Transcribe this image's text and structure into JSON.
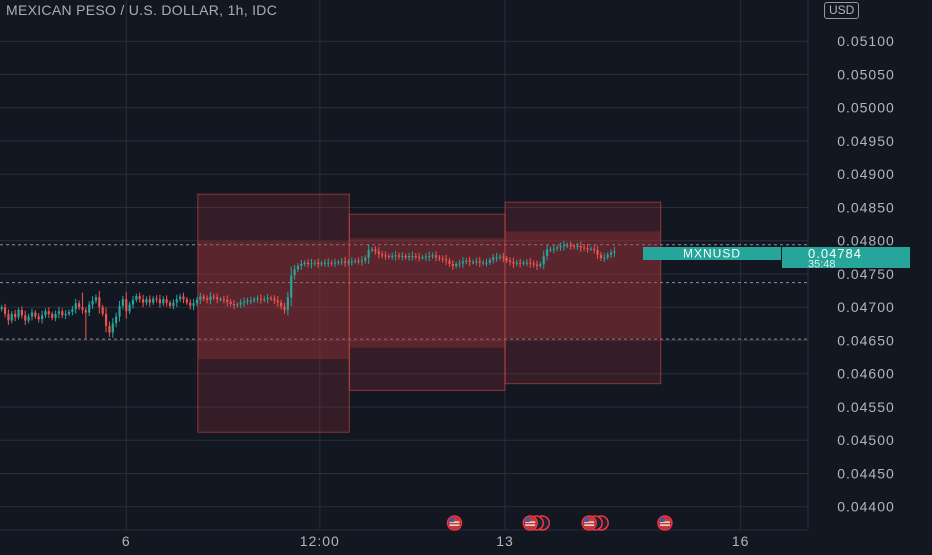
{
  "header": {
    "title": "MEXICAN PESO / U.S. DOLLAR, 1h, IDC",
    "currency": "USD"
  },
  "colors": {
    "background": "#131722",
    "up": "#26a69a",
    "down": "#ef5350",
    "grid": "#2a2e39",
    "zone_fill": "#b2383b",
    "zone_stroke": "#e84a4d",
    "axis_text": "#b2b5be"
  },
  "price_tag": {
    "symbol": "MXNUSD",
    "price": "0.04784",
    "countdown": "35:48"
  },
  "event_icons": [
    {
      "label": "US",
      "count": 1,
      "time": 5.4
    },
    {
      "label": "US",
      "count": 3,
      "time": 6.3
    },
    {
      "label": "US",
      "count": 3,
      "time": 7.0
    },
    {
      "label": "US",
      "count": 1,
      "time": 7.9
    }
  ],
  "chart_data": {
    "type": "candlestick",
    "title": "MEXICAN PESO / U.S. DOLLAR, 1h, IDC",
    "ylim": [
      0.04365,
      0.05162
    ],
    "xlim": [
      0,
      9.6
    ],
    "y_ticks": [
      "0.04400",
      "0.04450",
      "0.04500",
      "0.04550",
      "0.04600",
      "0.04650",
      "0.04700",
      "0.04750",
      "0.04800",
      "0.04850",
      "0.04900",
      "0.04950",
      "0.05000",
      "0.05050",
      "0.05100"
    ],
    "x_ticks": [
      {
        "label": "6",
        "t": 1.5
      },
      {
        "label": "12:00",
        "t": 3.8
      },
      {
        "label": "13",
        "t": 6.0
      },
      {
        "label": "16",
        "t": 8.8
      }
    ],
    "last_price": 0.04784,
    "horizontal_lines": [
      0.04794,
      0.04737,
      0.04652
    ],
    "zones": [
      {
        "t0": 2.35,
        "t1": 4.15,
        "top": 0.0487,
        "bottom": 0.04512,
        "mid_top": 0.04799,
        "mid_bottom": 0.04622
      },
      {
        "t0": 4.15,
        "t1": 6.0,
        "top": 0.0484,
        "bottom": 0.04575,
        "mid_top": 0.04804,
        "mid_bottom": 0.04639
      },
      {
        "t0": 6.0,
        "t1": 7.85,
        "top": 0.04858,
        "bottom": 0.04585,
        "mid_top": 0.04814,
        "mid_bottom": 0.04652
      }
    ],
    "candle_interval": 0.04,
    "closes": [
      0.047,
      0.0469,
      0.0468,
      0.0469,
      0.04685,
      0.04696,
      0.04688,
      0.0468,
      0.04686,
      0.04692,
      0.04686,
      0.04682,
      0.04688,
      0.04694,
      0.0469,
      0.04684,
      0.0469,
      0.04694,
      0.04688,
      0.0469,
      0.04693,
      0.04697,
      0.04706,
      0.047,
      0.04696,
      0.04692,
      0.04704,
      0.0471,
      0.04715,
      0.047,
      0.0469,
      0.04672,
      0.04662,
      0.04676,
      0.04686,
      0.04702,
      0.04712,
      0.04694,
      0.04704,
      0.04711,
      0.04717,
      0.04712,
      0.04707,
      0.04712,
      0.04707,
      0.04713,
      0.04712,
      0.04706,
      0.04712,
      0.04707,
      0.04702,
      0.04707,
      0.04712,
      0.04716,
      0.04712,
      0.04707,
      0.04702,
      0.04706,
      0.04711,
      0.04716,
      0.04713,
      0.04711,
      0.04716,
      0.04715,
      0.04712,
      0.04712,
      0.04711,
      0.04708,
      0.04705,
      0.04703,
      0.04704,
      0.04707,
      0.04708,
      0.0471,
      0.0471,
      0.04712,
      0.04713,
      0.04712,
      0.04712,
      0.04714,
      0.04713,
      0.0471,
      0.04707,
      0.04701,
      0.04696,
      0.04715,
      0.04748,
      0.04757,
      0.04762,
      0.04765,
      0.04767,
      0.04765,
      0.04766,
      0.04767,
      0.04765,
      0.04766,
      0.04767,
      0.04767,
      0.04766,
      0.04767,
      0.04768,
      0.04769,
      0.04767,
      0.04768,
      0.04769,
      0.0477,
      0.04769,
      0.0477,
      0.04774,
      0.04786,
      0.04787,
      0.04784,
      0.0478,
      0.04778,
      0.04777,
      0.04776,
      0.04777,
      0.04778,
      0.04776,
      0.04777,
      0.04775,
      0.04777,
      0.04777,
      0.04776,
      0.04775,
      0.04775,
      0.04776,
      0.04777,
      0.04778,
      0.04775,
      0.04773,
      0.04772,
      0.0477,
      0.04765,
      0.04762,
      0.04765,
      0.04766,
      0.04769,
      0.0477,
      0.04768,
      0.04768,
      0.04769,
      0.04767,
      0.04767,
      0.04767,
      0.04771,
      0.04775,
      0.04775,
      0.04776,
      0.04774,
      0.0477,
      0.04768,
      0.04766,
      0.04767,
      0.04766,
      0.04767,
      0.04767,
      0.04766,
      0.04764,
      0.04762,
      0.04765,
      0.04777,
      0.04787,
      0.04787,
      0.04788,
      0.0479,
      0.04792,
      0.04793,
      0.04793,
      0.04792,
      0.04791,
      0.04792,
      0.0479,
      0.04789,
      0.04788,
      0.04788,
      0.04786,
      0.04779,
      0.04774,
      0.04775,
      0.04779,
      0.04782,
      0.04784
    ]
  }
}
